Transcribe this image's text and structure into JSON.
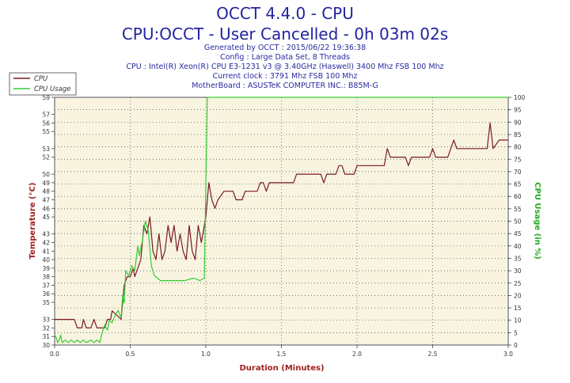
{
  "header": {
    "title": "OCCT 4.4.0 - CPU",
    "subtitle": "CPU:OCCT - User Cancelled - 0h 03m 02s",
    "lines": [
      "Generated by OCCT : 2015/06/22 19:36:38",
      "Config : Large Data Set, 8 Threads",
      "CPU : Intel(R) Xeon(R) CPU E3-1231 v3 @ 3.40GHz (Haswell) 3400 Mhz FSB 100 Mhz",
      "Current clock : 3791 Mhz FSB 100 Mhz",
      "MotherBoard : ASUSTeK COMPUTER INC.: B85M-G"
    ]
  },
  "chart_data": {
    "type": "line",
    "xlabel": "Duration (Minutes)",
    "ylabel": "Temperature (°C)",
    "y2label": "CPU Usage (in %)",
    "xlim": [
      0,
      3.0
    ],
    "ylim": [
      30,
      59
    ],
    "y2lim": [
      0,
      100
    ],
    "x_ticks": [
      "0.0",
      "0.5",
      "1.0",
      "1.5",
      "2.0",
      "2.5",
      "3.0"
    ],
    "y_ticks": [
      30,
      31,
      32,
      33,
      35,
      36,
      37,
      38,
      39,
      40,
      41,
      42,
      43,
      45,
      46,
      47,
      48,
      49,
      50,
      52,
      53,
      55,
      56,
      57,
      59
    ],
    "y2_ticks": [
      0,
      5,
      10,
      15,
      20,
      25,
      30,
      35,
      40,
      45,
      50,
      55,
      60,
      65,
      70,
      75,
      80,
      85,
      90,
      95,
      100
    ],
    "grid": true,
    "legend_position": "top-left",
    "colors": {
      "cpu": "#7a1a28",
      "usage": "#33cc33",
      "plot_bg": "#f8f4e0",
      "axis_label": "#a02020",
      "y2_label": "#22aa22"
    },
    "series": [
      {
        "name": "CPU",
        "axis": "left",
        "points": [
          [
            0.0,
            33
          ],
          [
            0.13,
            33
          ],
          [
            0.15,
            32
          ],
          [
            0.18,
            32
          ],
          [
            0.19,
            33
          ],
          [
            0.21,
            32
          ],
          [
            0.24,
            32
          ],
          [
            0.26,
            33
          ],
          [
            0.28,
            32
          ],
          [
            0.33,
            32
          ],
          [
            0.35,
            33
          ],
          [
            0.37,
            33
          ],
          [
            0.38,
            34
          ],
          [
            0.44,
            33
          ],
          [
            0.46,
            37
          ],
          [
            0.48,
            38
          ],
          [
            0.5,
            38
          ],
          [
            0.52,
            39
          ],
          [
            0.53,
            38
          ],
          [
            0.55,
            39
          ],
          [
            0.57,
            40
          ],
          [
            0.59,
            44
          ],
          [
            0.61,
            43
          ],
          [
            0.63,
            45
          ],
          [
            0.65,
            41
          ],
          [
            0.67,
            40
          ],
          [
            0.69,
            43
          ],
          [
            0.71,
            40
          ],
          [
            0.73,
            41
          ],
          [
            0.75,
            44
          ],
          [
            0.77,
            42
          ],
          [
            0.79,
            44
          ],
          [
            0.81,
            41
          ],
          [
            0.83,
            43
          ],
          [
            0.85,
            41
          ],
          [
            0.87,
            40
          ],
          [
            0.89,
            44
          ],
          [
            0.91,
            41
          ],
          [
            0.93,
            40
          ],
          [
            0.95,
            44
          ],
          [
            0.97,
            42
          ],
          [
            0.99,
            44
          ],
          [
            1.0,
            45
          ],
          [
            1.02,
            49
          ],
          [
            1.04,
            47
          ],
          [
            1.06,
            46
          ],
          [
            1.08,
            47
          ],
          [
            1.12,
            48
          ],
          [
            1.18,
            48
          ],
          [
            1.2,
            47
          ],
          [
            1.24,
            47
          ],
          [
            1.26,
            48
          ],
          [
            1.3,
            48
          ],
          [
            1.34,
            48
          ],
          [
            1.36,
            49
          ],
          [
            1.38,
            49
          ],
          [
            1.4,
            48
          ],
          [
            1.42,
            49
          ],
          [
            1.58,
            49
          ],
          [
            1.6,
            50
          ],
          [
            1.76,
            50
          ],
          [
            1.78,
            49
          ],
          [
            1.8,
            50
          ],
          [
            1.86,
            50
          ],
          [
            1.88,
            51
          ],
          [
            1.9,
            51
          ],
          [
            1.92,
            50
          ],
          [
            1.98,
            50
          ],
          [
            2.0,
            51
          ],
          [
            2.18,
            51
          ],
          [
            2.2,
            53
          ],
          [
            2.22,
            52
          ],
          [
            2.32,
            52
          ],
          [
            2.34,
            51
          ],
          [
            2.36,
            52
          ],
          [
            2.48,
            52
          ],
          [
            2.5,
            53
          ],
          [
            2.52,
            52
          ],
          [
            2.6,
            52
          ],
          [
            2.62,
            53
          ],
          [
            2.64,
            54
          ],
          [
            2.66,
            53
          ],
          [
            2.86,
            53
          ],
          [
            2.88,
            56
          ],
          [
            2.9,
            53
          ],
          [
            2.94,
            54
          ],
          [
            3.0,
            54
          ]
        ]
      },
      {
        "name": "CPU Usage",
        "axis": "right",
        "points": [
          [
            0.0,
            4
          ],
          [
            0.01,
            3
          ],
          [
            0.02,
            1
          ],
          [
            0.03,
            2
          ],
          [
            0.04,
            4
          ],
          [
            0.05,
            1
          ],
          [
            0.07,
            2
          ],
          [
            0.09,
            1
          ],
          [
            0.11,
            2
          ],
          [
            0.13,
            1
          ],
          [
            0.15,
            2
          ],
          [
            0.17,
            1
          ],
          [
            0.19,
            2
          ],
          [
            0.21,
            1
          ],
          [
            0.24,
            2
          ],
          [
            0.26,
            1
          ],
          [
            0.28,
            2
          ],
          [
            0.3,
            1
          ],
          [
            0.31,
            4
          ],
          [
            0.33,
            8
          ],
          [
            0.35,
            6
          ],
          [
            0.36,
            10
          ],
          [
            0.38,
            9
          ],
          [
            0.4,
            12
          ],
          [
            0.42,
            14
          ],
          [
            0.44,
            11
          ],
          [
            0.45,
            20
          ],
          [
            0.46,
            17
          ],
          [
            0.47,
            30
          ],
          [
            0.49,
            28
          ],
          [
            0.51,
            32
          ],
          [
            0.53,
            30
          ],
          [
            0.55,
            40
          ],
          [
            0.56,
            36
          ],
          [
            0.58,
            42
          ],
          [
            0.6,
            50
          ],
          [
            0.62,
            46
          ],
          [
            0.64,
            32
          ],
          [
            0.66,
            28
          ],
          [
            0.7,
            26
          ],
          [
            0.74,
            26
          ],
          [
            0.8,
            26
          ],
          [
            0.86,
            26
          ],
          [
            0.92,
            27
          ],
          [
            0.96,
            26
          ],
          [
            0.99,
            27
          ],
          [
            1.0,
            65
          ],
          [
            1.01,
            100
          ],
          [
            3.0,
            100
          ]
        ]
      }
    ]
  }
}
